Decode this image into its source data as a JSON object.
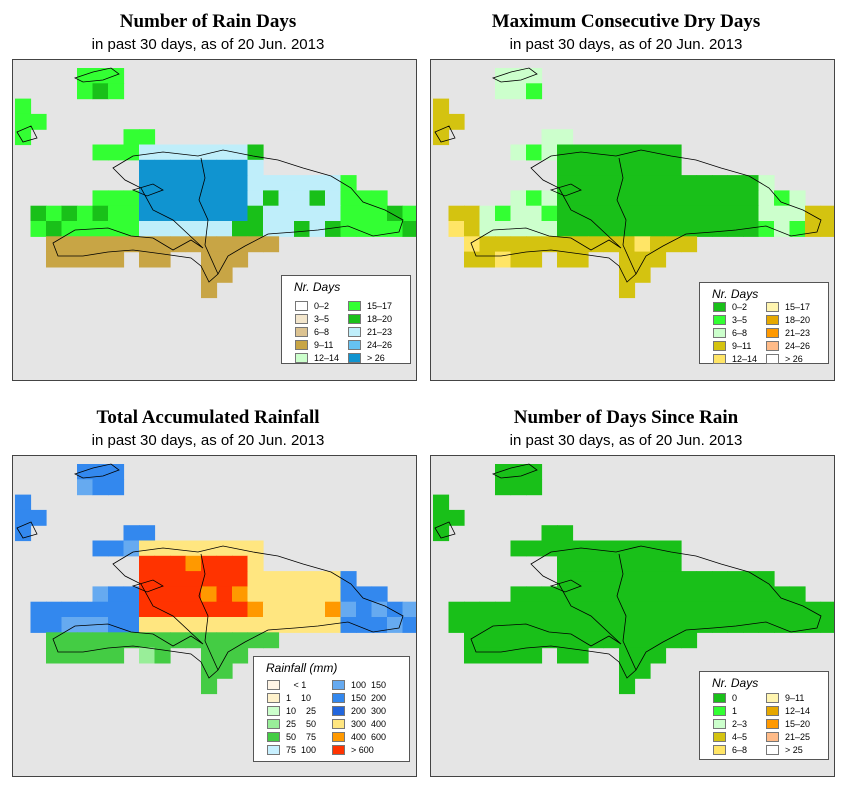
{
  "colors": {
    "background": "#ffffff",
    "map_bg": "#e5e5e5",
    "outline": "#000000"
  },
  "panels": [
    {
      "title": "Number of Rain Days",
      "subtitle": "in past 30 days, as of  20 Jun. 2013",
      "legend": {
        "title": "Nr. Days",
        "items": [
          {
            "label": "0–2",
            "color": "#ffffff"
          },
          {
            "label": "3–5",
            "color": "#f3e6cc"
          },
          {
            "label": "6–8",
            "color": "#dcc391"
          },
          {
            "label": "9–11",
            "color": "#c8a545"
          },
          {
            "label": "12–14",
            "color": "#ccffcc"
          },
          {
            "label": "15–17",
            "color": "#33ff33"
          },
          {
            "label": "18–20",
            "color": "#19c019"
          },
          {
            "label": "21–23",
            "color": "#bfeefa"
          },
          {
            "label": "24–26",
            "color": "#66c2f2"
          },
          {
            "label": "> 26",
            "color": "#1094d0"
          }
        ]
      }
    },
    {
      "title": "Maximum Consecutive Dry Days",
      "subtitle": "in past 30 days, as of  20 Jun. 2013",
      "legend": {
        "title": "Nr. Days",
        "items": [
          {
            "label": "0–2",
            "color": "#19c019"
          },
          {
            "label": "3–5",
            "color": "#33ff33"
          },
          {
            "label": "6–8",
            "color": "#ccffcc"
          },
          {
            "label": "9–11",
            "color": "#d4c310"
          },
          {
            "label": "12–14",
            "color": "#ffe566"
          },
          {
            "label": "15–17",
            "color": "#fff5b0"
          },
          {
            "label": "18–20",
            "color": "#e6a800"
          },
          {
            "label": "21–23",
            "color": "#ff9900"
          },
          {
            "label": "24–26",
            "color": "#ffbb88"
          },
          {
            "label": "> 26",
            "color": "#ffffff"
          }
        ]
      }
    },
    {
      "title": "Total Accumulated Rainfall",
      "subtitle": "in past 30 days, as of  20 Jun. 2013",
      "legend": {
        "title": "Rainfall (mm)",
        "items": [
          {
            "label": "   < 1",
            "color": "#fff5e6"
          },
          {
            "label": "1    10",
            "color": "#fff2cc"
          },
          {
            "label": "10    25",
            "color": "#ccffcc"
          },
          {
            "label": "25    50",
            "color": "#99ee99"
          },
          {
            "label": "50    75",
            "color": "#44cc44"
          },
          {
            "label": "75  100",
            "color": "#c8f0ff"
          },
          {
            "label": "100  150",
            "color": "#66aaf0"
          },
          {
            "label": "150  200",
            "color": "#3388ee"
          },
          {
            "label": "200  300",
            "color": "#2266dd"
          },
          {
            "label": "300  400",
            "color": "#ffe680"
          },
          {
            "label": "400  600",
            "color": "#ff9900"
          },
          {
            "label": "> 600",
            "color": "#ff3300"
          }
        ]
      }
    },
    {
      "title": "Number of Days Since Rain",
      "subtitle": "in past 30 days, as of  20 Jun. 2013",
      "legend": {
        "title": "Nr. Days",
        "items": [
          {
            "label": "0",
            "color": "#19c019"
          },
          {
            "label": "1",
            "color": "#33ff33"
          },
          {
            "label": "2–3",
            "color": "#ccffcc"
          },
          {
            "label": "4–5",
            "color": "#d4c310"
          },
          {
            "label": "6–8",
            "color": "#ffe566"
          },
          {
            "label": "9–11",
            "color": "#fff5b0"
          },
          {
            "label": "12–14",
            "color": "#e6a800"
          },
          {
            "label": "15–20",
            "color": "#ff9900"
          },
          {
            "label": "21–25",
            "color": "#ffbb88"
          },
          {
            "label": "> 25",
            "color": "#ffffff"
          }
        ]
      }
    }
  ]
}
